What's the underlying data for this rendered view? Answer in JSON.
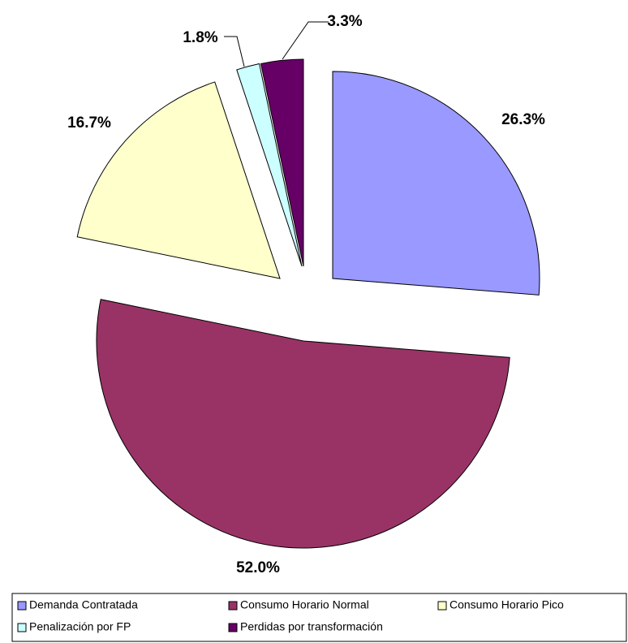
{
  "chart_data": {
    "type": "pie",
    "categories": [
      "Demanda Contratada",
      "Consumo Horario Normal",
      "Consumo Horario Pico",
      "Penalización por FP",
      "Perdidas por transformación"
    ],
    "values": [
      26.3,
      52.0,
      16.7,
      1.8,
      3.3
    ],
    "value_labels": [
      "26.3%",
      "52.0%",
      "16.7%",
      "1.8%",
      "3.3%"
    ],
    "colors": [
      "#9999ff",
      "#993366",
      "#ffffcc",
      "#ccffff",
      "#660066"
    ]
  }
}
